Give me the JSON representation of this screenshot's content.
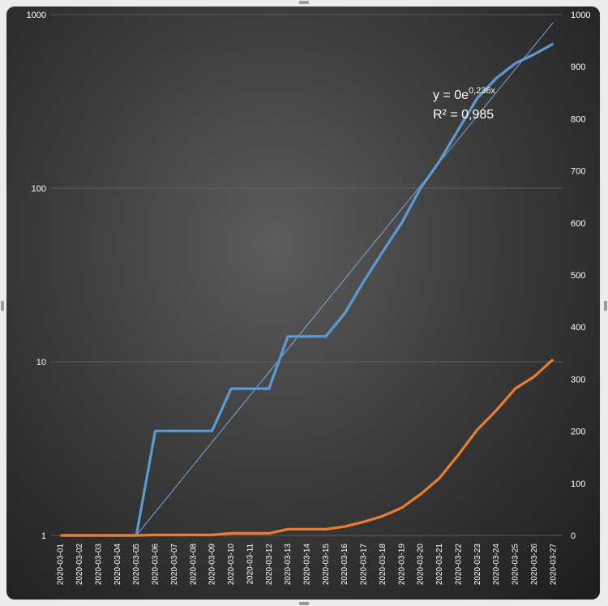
{
  "chart_data": {
    "type": "line",
    "categories": [
      "2020-03-01",
      "2020-03-02",
      "2020-03-03",
      "2020-03-04",
      "2020-03-05",
      "2020-03-06",
      "2020-03-07",
      "2020-03-08",
      "2020-03-09",
      "2020-03-10",
      "2020-03-11",
      "2020-03-12",
      "2020-03-13",
      "2020-03-14",
      "2020-03-15",
      "2020-03-16",
      "2020-03-17",
      "2020-03-18",
      "2020-03-19",
      "2020-03-20",
      "2020-03-21",
      "2020-03-22",
      "2020-03-23",
      "2020-03-24",
      "2020-03-25",
      "2020-03-26",
      "2020-03-27"
    ],
    "y_left": {
      "scale": "log",
      "ylim": [
        1,
        1000
      ],
      "ticks": [
        "1",
        "10",
        "100",
        "1000"
      ]
    },
    "y_right": {
      "scale": "linear",
      "ylim": [
        0,
        1000
      ],
      "ticks": [
        "0",
        "100",
        "200",
        "300",
        "400",
        "500",
        "600",
        "700",
        "800",
        "900",
        "1000"
      ]
    },
    "grid": true,
    "series": [
      {
        "axis": "left",
        "color": "#5b9bd5",
        "values": [
          1,
          1,
          1,
          1,
          1,
          4,
          4,
          4,
          4,
          7,
          7,
          7,
          14,
          14,
          14,
          19,
          29,
          43,
          63,
          100,
          143,
          218,
          330,
          430,
          524,
          590,
          679
        ]
      },
      {
        "axis": "right",
        "color": "#ed7d31",
        "values": [
          0,
          0,
          0,
          0,
          0,
          1,
          1,
          1,
          1,
          4,
          4,
          4,
          12,
          12,
          12,
          17,
          26,
          37,
          53,
          79,
          110,
          155,
          203,
          240,
          282,
          305,
          338
        ]
      }
    ],
    "trendline": {
      "axis": "left",
      "type": "exponential",
      "color": "#7ea6e0",
      "x_start_index": 4,
      "x_end_index": 26,
      "y_start": 1,
      "y_end": 900
    },
    "annotation": {
      "equation_base": "y = 0e",
      "equation_exp": "0,236x",
      "r2": "R² = 0,985"
    }
  }
}
